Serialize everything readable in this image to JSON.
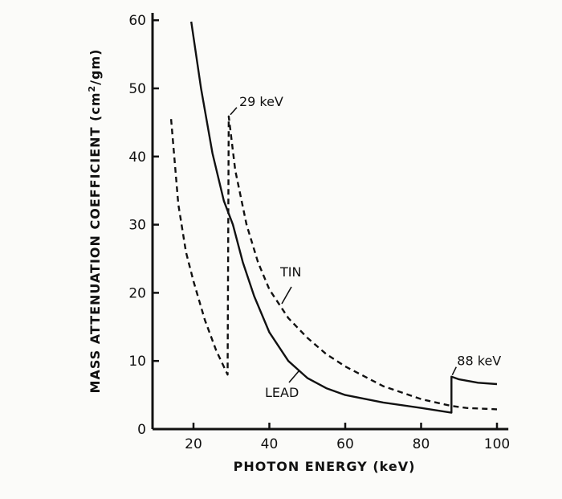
{
  "chart_data": {
    "type": "line",
    "title": "",
    "xlabel": "PHOTON ENERGY (keV)",
    "ylabel_parts": [
      "MASS ATTENUATION COEFFICIENT (cm",
      "2",
      "/gm)"
    ],
    "xlim": [
      9.3,
      103
    ],
    "ylim": [
      0,
      62
    ],
    "x_ticks": [
      20,
      40,
      60,
      80,
      100
    ],
    "x_tick_labels": [
      "20",
      "40",
      "60",
      "80",
      "100"
    ],
    "y_ticks": [
      0,
      10,
      20,
      30,
      40,
      50,
      60
    ],
    "y_tick_labels": [
      "0",
      "10",
      "20",
      "30",
      "40",
      "50",
      "60"
    ],
    "grid": false,
    "series": [
      {
        "name": "LEAD",
        "style": "solid",
        "points": [
          [
            19.4,
            59.8
          ],
          [
            22,
            50
          ],
          [
            25,
            40.5
          ],
          [
            28,
            33.5
          ],
          [
            30.4,
            30
          ],
          [
            33,
            24.5
          ],
          [
            36,
            19.5
          ],
          [
            40,
            14.2
          ],
          [
            45,
            10
          ],
          [
            50,
            7.5
          ],
          [
            55,
            6
          ],
          [
            60,
            5
          ],
          [
            70,
            3.9
          ],
          [
            80,
            3.1
          ],
          [
            88,
            2.4
          ],
          [
            88,
            7.7
          ],
          [
            90,
            7.3
          ],
          [
            95,
            6.8
          ],
          [
            100,
            6.6
          ]
        ]
      },
      {
        "name": "TIN",
        "style": "dashed",
        "points": [
          [
            14.1,
            45.5
          ],
          [
            16,
            33
          ],
          [
            18,
            26
          ],
          [
            20,
            21.7
          ],
          [
            23,
            16
          ],
          [
            26,
            11.5
          ],
          [
            29,
            8.0
          ],
          [
            29.3,
            45.9
          ],
          [
            31,
            38
          ],
          [
            34,
            30
          ],
          [
            37,
            24.5
          ],
          [
            40,
            20.5
          ],
          [
            45,
            16.3
          ],
          [
            50,
            13.4
          ],
          [
            55,
            11
          ],
          [
            60,
            9.2
          ],
          [
            70,
            6.3
          ],
          [
            80,
            4.4
          ],
          [
            88,
            3.4
          ],
          [
            92,
            3.1
          ],
          [
            100,
            2.9
          ]
        ]
      }
    ],
    "annotations": [
      {
        "text": "29 keV",
        "x": 29.3,
        "y": 45.9
      },
      {
        "text": "88 keV",
        "x": 88,
        "y": 7.7
      },
      {
        "text": "TIN",
        "x": 42,
        "y": 19
      },
      {
        "text": "LEAD",
        "x": 47,
        "y": 8.5
      }
    ]
  }
}
